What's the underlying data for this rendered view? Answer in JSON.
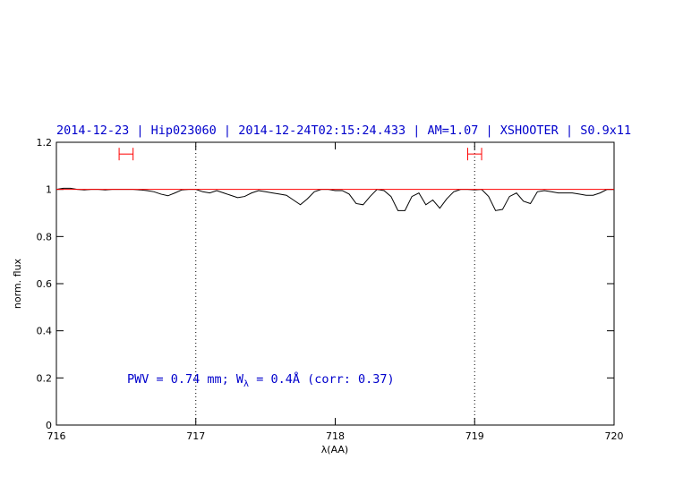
{
  "chart_data": {
    "type": "line",
    "title": "2014-12-23 | Hip023060 | 2014-12-24T02:15:24.433 | AM=1.07 | XSHOOTER | S0.9x11",
    "xlabel": "λ(AA)",
    "ylabel": "norm. flux",
    "xlim": [
      716,
      720
    ],
    "ylim": [
      0,
      1.2
    ],
    "xticks": [
      716,
      717,
      718,
      719,
      720
    ],
    "yticks": [
      0,
      0.2,
      0.4,
      0.6,
      0.8,
      1,
      1.2
    ],
    "series": [
      {
        "color": "#000000",
        "x": [
          716.0,
          716.05,
          716.1,
          716.15,
          716.2,
          716.25,
          716.3,
          716.35,
          716.4,
          716.45,
          716.5,
          716.55,
          716.6,
          716.65,
          716.7,
          716.75,
          716.8,
          716.85,
          716.9,
          716.95,
          717.0,
          717.05,
          717.1,
          717.15,
          717.2,
          717.25,
          717.3,
          717.35,
          717.4,
          717.45,
          717.5,
          717.55,
          717.6,
          717.65,
          717.7,
          717.75,
          717.8,
          717.85,
          717.9,
          717.95,
          718.0,
          718.05,
          718.1,
          718.15,
          718.2,
          718.25,
          718.3,
          718.35,
          718.4,
          718.45,
          718.5,
          718.55,
          718.6,
          718.65,
          718.7,
          718.75,
          718.8,
          718.85,
          718.9,
          718.95,
          719.0,
          719.05,
          719.1,
          719.15,
          719.2,
          719.25,
          719.3,
          719.35,
          719.4,
          719.45,
          719.5,
          719.55,
          719.6,
          719.65,
          719.7,
          719.75,
          719.8,
          719.85,
          719.9,
          719.95,
          720.0
        ],
        "values": [
          1.0,
          1.005,
          1.005,
          1.0,
          0.998,
          1.0,
          1.0,
          0.998,
          1.0,
          1.0,
          1.0,
          1.0,
          0.998,
          0.995,
          0.99,
          0.98,
          0.973,
          0.985,
          0.998,
          1.0,
          1.0,
          0.99,
          0.985,
          0.995,
          0.985,
          0.975,
          0.965,
          0.97,
          0.985,
          0.995,
          0.99,
          0.985,
          0.98,
          0.975,
          0.955,
          0.935,
          0.96,
          0.99,
          1.0,
          1.0,
          0.995,
          0.995,
          0.98,
          0.94,
          0.935,
          0.97,
          1.0,
          0.995,
          0.97,
          0.91,
          0.91,
          0.97,
          0.985,
          0.935,
          0.955,
          0.92,
          0.96,
          0.99,
          1.0,
          1.0,
          0.998,
          1.0,
          0.97,
          0.91,
          0.915,
          0.97,
          0.985,
          0.95,
          0.94,
          0.99,
          0.995,
          0.99,
          0.985,
          0.985,
          0.985,
          0.98,
          0.975,
          0.975,
          0.985,
          1.0,
          1.0
        ]
      },
      {
        "color": "#ff0000",
        "x": [
          716,
          720
        ],
        "values": [
          1,
          1
        ]
      }
    ],
    "error_ranges": [
      {
        "xmin": 716.45,
        "xmax": 716.55,
        "y": 1.15,
        "color": "#ff0000"
      },
      {
        "xmin": 718.95,
        "xmax": 719.05,
        "y": 1.15,
        "color": "#ff0000"
      }
    ],
    "vlines": [
      717,
      719
    ],
    "annotation": [
      "PWV = 0.74 mm; W",
      "λ",
      " = 0.4Å (corr: 0.37)"
    ],
    "text_color": "#0000cc"
  }
}
